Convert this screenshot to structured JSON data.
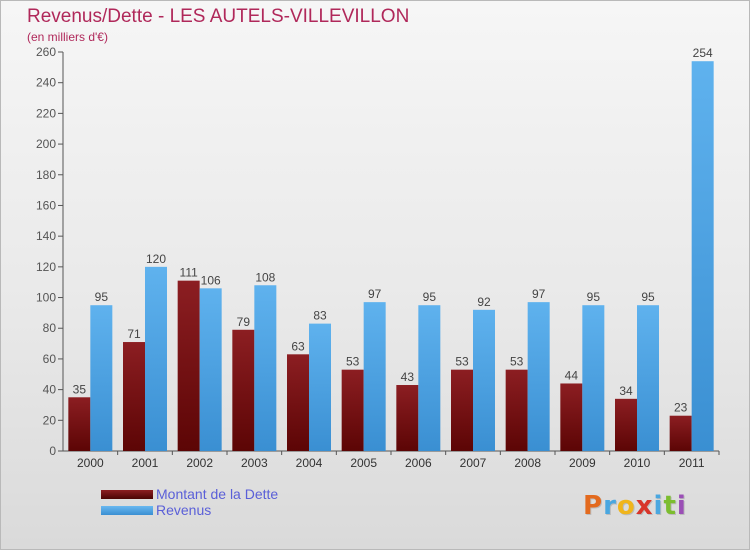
{
  "chart_data": {
    "type": "bar",
    "title": "Revenus/Dette - LES AUTELS-VILLEVILLON",
    "subtitle": "(en milliers d'€)",
    "categories": [
      "2000",
      "2001",
      "2002",
      "2003",
      "2004",
      "2005",
      "2006",
      "2007",
      "2008",
      "2009",
      "2010",
      "2011"
    ],
    "series": [
      {
        "name": "Montant de la Dette",
        "color": "#7a0f10",
        "values": [
          35,
          71,
          111,
          79,
          63,
          53,
          43,
          53,
          53,
          44,
          34,
          23
        ]
      },
      {
        "name": "Revenus",
        "color": "#4ea6e6",
        "values": [
          95,
          120,
          106,
          108,
          83,
          97,
          95,
          92,
          97,
          95,
          95,
          254
        ]
      }
    ],
    "ylim": [
      0,
      260
    ],
    "yticks": [
      0,
      20,
      40,
      60,
      80,
      100,
      120,
      140,
      160,
      180,
      200,
      220,
      240,
      260
    ],
    "xlabel": "",
    "ylabel": "",
    "grid": false,
    "legend_position": "bottom-left"
  },
  "logo": {
    "letters": [
      "P",
      "r",
      "o",
      "x",
      "i",
      "t",
      "i"
    ],
    "colors": [
      "#e36a1e",
      "#4aa7e0",
      "#f0b51c",
      "#d8352a",
      "#4aa7e0",
      "#7cbd2f",
      "#9b4fb6"
    ]
  }
}
